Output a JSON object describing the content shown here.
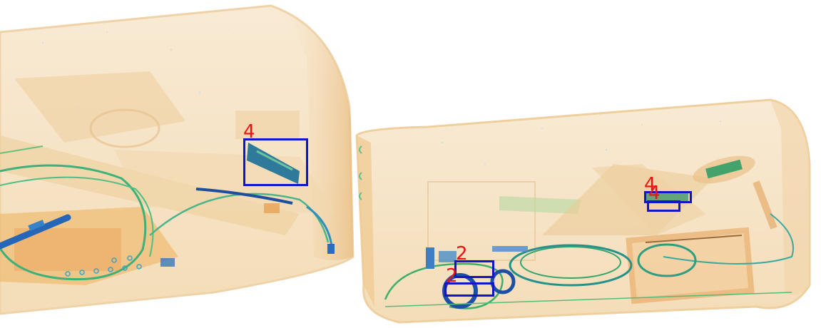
{
  "scene": {
    "kind": "x-ray baggage scan",
    "bags": [
      "left-bag",
      "right-bag"
    ]
  },
  "colors": {
    "background": "#ffffff",
    "organic": "#f1cf9e",
    "organic_dark": "#e0a55d",
    "inorganic": "#5fbf6a",
    "metal": "#1f5fb4",
    "box": "#1414c8",
    "label": "#ee1111"
  },
  "detections": [
    {
      "id": "det-1",
      "label": "4"
    },
    {
      "id": "det-2",
      "label": "4"
    },
    {
      "id": "det-3",
      "label": "4"
    },
    {
      "id": "det-4",
      "label": "2"
    },
    {
      "id": "det-5",
      "label": "2"
    }
  ]
}
